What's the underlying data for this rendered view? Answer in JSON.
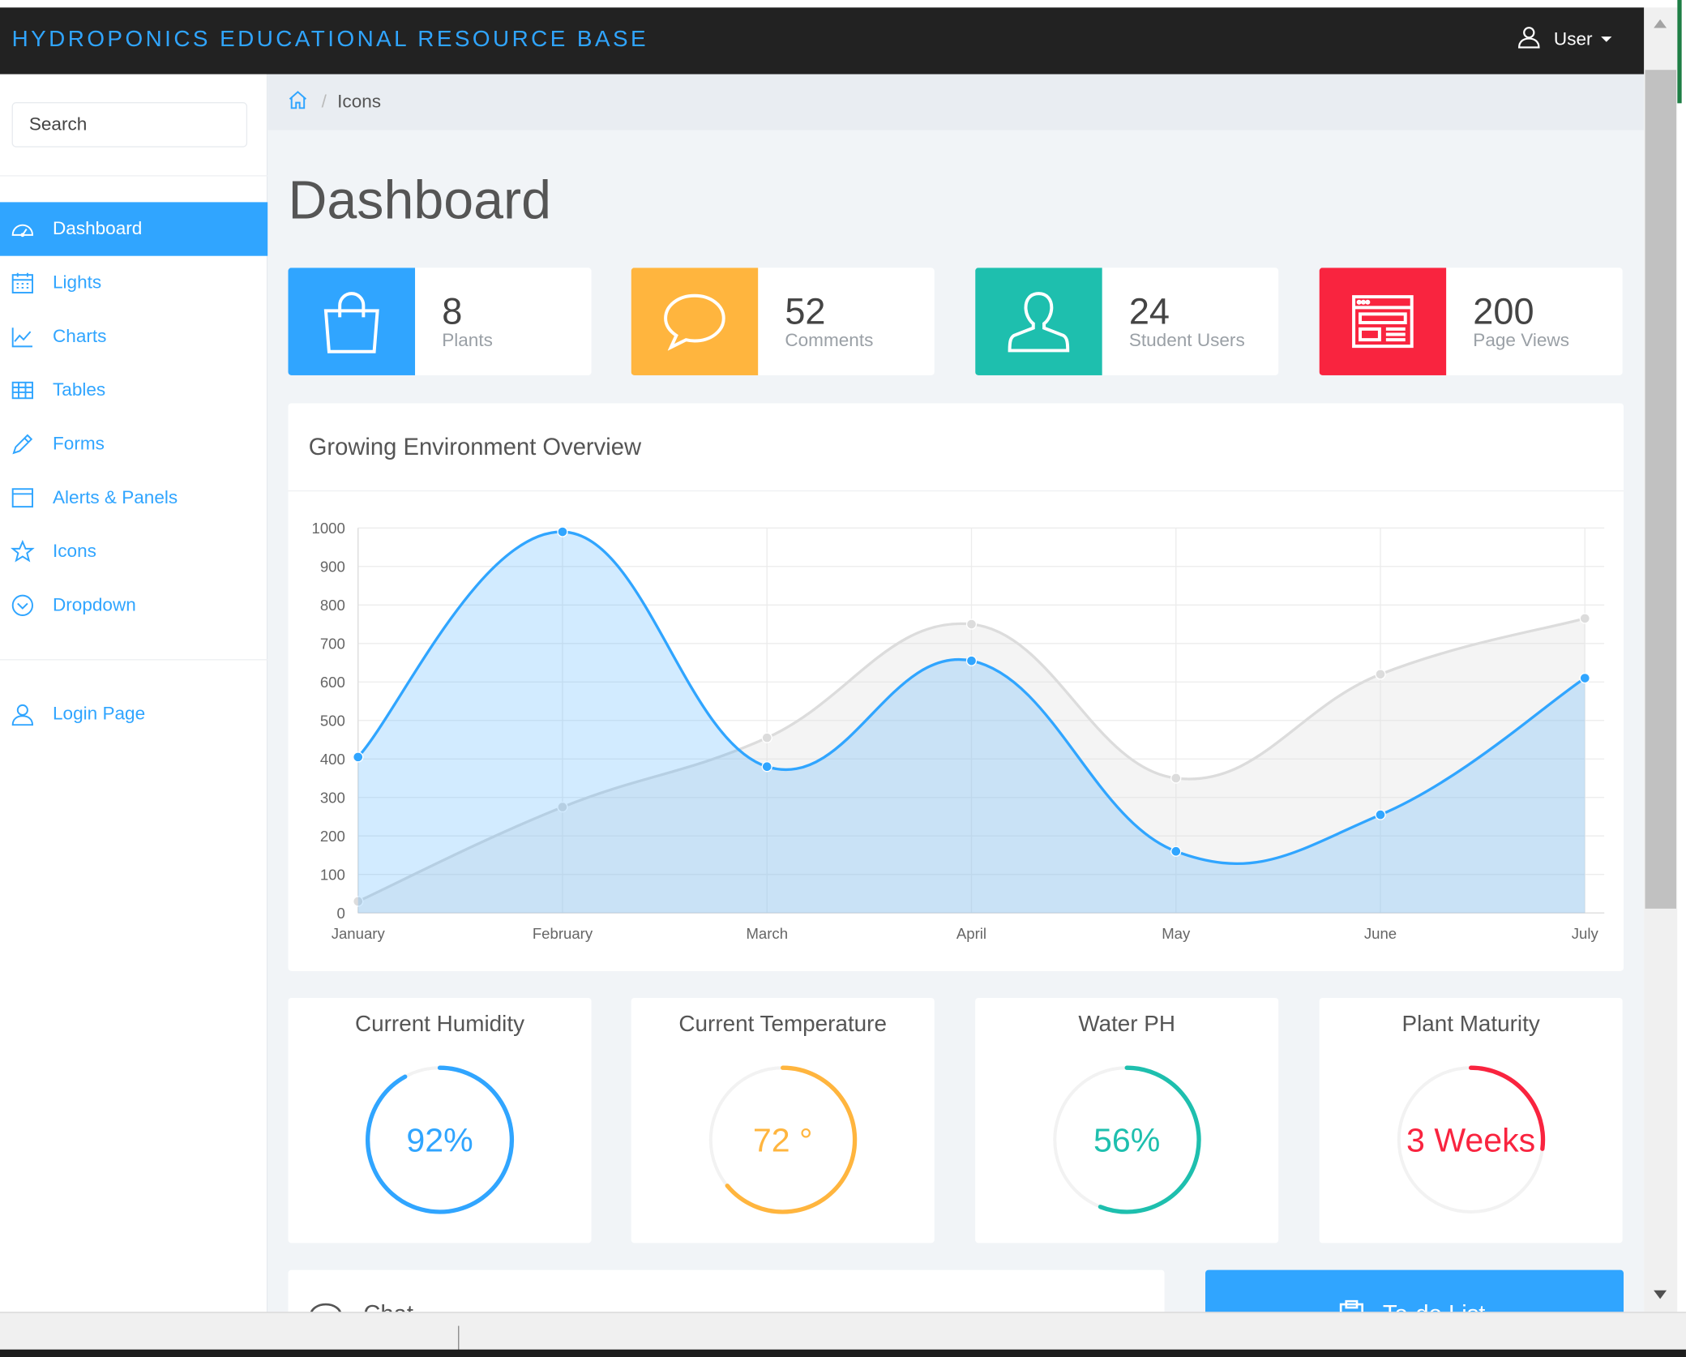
{
  "navbar": {
    "brand": "HYDROPONICS EDUCATIONAL RESOURCE BASE",
    "user_label": "User"
  },
  "sidebar": {
    "search_placeholder": "Search",
    "items": [
      {
        "label": "Dashboard",
        "icon": "speedometer-icon",
        "active": true
      },
      {
        "label": "Lights",
        "icon": "calendar-icon"
      },
      {
        "label": "Charts",
        "icon": "line-chart-icon"
      },
      {
        "label": "Tables",
        "icon": "table-icon"
      },
      {
        "label": "Forms",
        "icon": "pencil-icon"
      },
      {
        "label": "Alerts & Panels",
        "icon": "window-icon"
      },
      {
        "label": "Icons",
        "icon": "star-icon"
      },
      {
        "label": "Dropdown",
        "icon": "chevron-circle-icon"
      }
    ],
    "login_label": "Login Page"
  },
  "breadcrumb": {
    "current": "Icons"
  },
  "page_title": "Dashboard",
  "stats": [
    {
      "value": "8",
      "label": "Plants",
      "color": "#30a5ff",
      "icon": "shopping-bag-icon"
    },
    {
      "value": "52",
      "label": "Comments",
      "color": "#ffb53e",
      "icon": "chat-bubble-icon"
    },
    {
      "value": "24",
      "label": "Student Users",
      "color": "#1ebfae",
      "icon": "user-icon"
    },
    {
      "value": "200",
      "label": "Page Views",
      "color": "#f9243f",
      "icon": "browser-window-icon"
    }
  ],
  "overview": {
    "title": "Growing Environment Overview"
  },
  "chart_data": {
    "type": "area",
    "title": "Growing Environment Overview",
    "categories": [
      "January",
      "February",
      "March",
      "April",
      "May",
      "June",
      "July"
    ],
    "ylim": [
      0,
      1000
    ],
    "yticks": [
      0,
      100,
      200,
      300,
      400,
      500,
      600,
      700,
      800,
      900,
      1000
    ],
    "grid": true,
    "series": [
      {
        "values": [
          30,
          275,
          455,
          750,
          350,
          620,
          765
        ],
        "color": "#dcdcdc"
      },
      {
        "values": [
          405,
          990,
          380,
          655,
          160,
          255,
          610
        ],
        "color": "#30a5ff"
      }
    ]
  },
  "gauges": [
    {
      "title": "Current Humidity",
      "value": "92%",
      "fraction": 0.92,
      "color": "#30a5ff"
    },
    {
      "title": "Current Temperature",
      "value": "72 °",
      "fraction": 0.64,
      "color": "#ffb53e"
    },
    {
      "title": "Water PH",
      "value": "56%",
      "fraction": 0.56,
      "color": "#1ebfae"
    },
    {
      "title": "Plant Maturity",
      "value": "3 Weeks",
      "fraction": 0.27,
      "color": "#f9243f"
    }
  ],
  "bottom": {
    "chat_label": "Chat",
    "todo_label": "To-do List"
  }
}
